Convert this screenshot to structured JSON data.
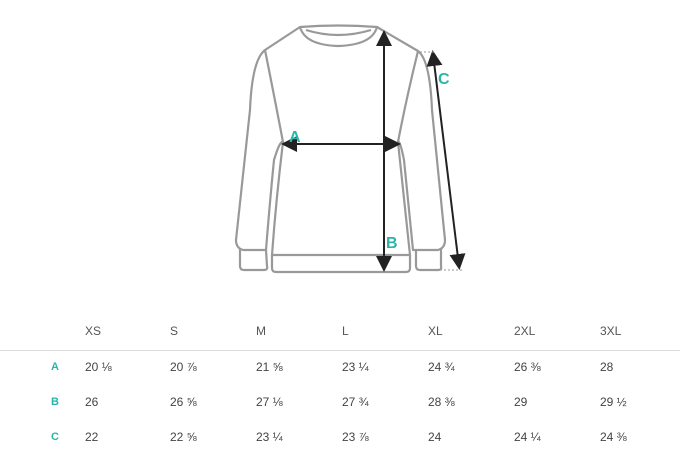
{
  "diagram": {
    "labels": {
      "a": "A",
      "b": "B",
      "c": "C"
    },
    "accent_color": "#2bb5a8"
  },
  "table": {
    "sizes": [
      "XS",
      "S",
      "M",
      "L",
      "XL",
      "2XL",
      "3XL"
    ],
    "rows": [
      {
        "label": "A",
        "values": [
          "20 ⅛",
          "20 ⅞",
          "21 ⅝",
          "23 ¼",
          "24 ¾",
          "26 ⅜",
          "28"
        ]
      },
      {
        "label": "B",
        "values": [
          "26",
          "26 ⅝",
          "27 ⅛",
          "27 ¾",
          "28 ⅜",
          "29",
          "29 ½"
        ]
      },
      {
        "label": "C",
        "values": [
          "22",
          "22 ⅝",
          "23 ¼",
          "23 ⅞",
          "24",
          "24 ¼",
          "24 ⅜"
        ]
      }
    ]
  }
}
